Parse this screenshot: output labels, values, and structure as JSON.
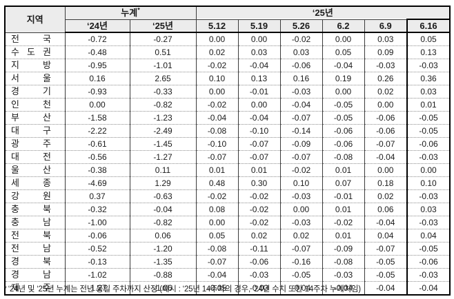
{
  "header": {
    "region_label": "지역",
    "cumulative_label": "누계",
    "cumulative_note_marker": "*",
    "year_group_label": "‘25년",
    "cumulative_cols": [
      "‘24년",
      "‘25년"
    ],
    "date_cols": [
      "5.12",
      "5.19",
      "5.26",
      "6.2",
      "6.9",
      "6.16"
    ],
    "highlighted_col": "6.16"
  },
  "rows": [
    {
      "region": "전국",
      "values": [
        "-0.72",
        "-0.27",
        "0.00",
        "0.00",
        "-0.02",
        "0.00",
        "0.03",
        "0.05"
      ]
    },
    {
      "region": "수도권",
      "values": [
        "-0.48",
        "0.51",
        "0.02",
        "0.03",
        "0.03",
        "0.05",
        "0.09",
        "0.13"
      ]
    },
    {
      "region": "지방",
      "values": [
        "-0.95",
        "-1.01",
        "-0.02",
        "-0.04",
        "-0.06",
        "-0.04",
        "-0.03",
        "-0.03"
      ]
    },
    {
      "region": "서울",
      "values": [
        "0.16",
        "2.65",
        "0.10",
        "0.13",
        "0.16",
        "0.19",
        "0.26",
        "0.36"
      ]
    },
    {
      "region": "경기",
      "values": [
        "-0.93",
        "-0.33",
        "0.00",
        "-0.01",
        "-0.03",
        "0.00",
        "0.02",
        "0.03"
      ]
    },
    {
      "region": "인천",
      "values": [
        "0.00",
        "-0.82",
        "-0.02",
        "0.00",
        "-0.04",
        "-0.05",
        "0.00",
        "0.01"
      ]
    },
    {
      "region": "부산",
      "values": [
        "-1.58",
        "-1.23",
        "-0.04",
        "-0.04",
        "-0.07",
        "-0.05",
        "-0.06",
        "-0.05"
      ]
    },
    {
      "region": "대구",
      "values": [
        "-2.22",
        "-2.49",
        "-0.08",
        "-0.10",
        "-0.14",
        "-0.06",
        "-0.06",
        "-0.05"
      ]
    },
    {
      "region": "광주",
      "values": [
        "-0.61",
        "-1.45",
        "-0.10",
        "-0.07",
        "-0.09",
        "-0.06",
        "-0.07",
        "-0.06"
      ]
    },
    {
      "region": "대전",
      "values": [
        "-0.56",
        "-1.27",
        "-0.07",
        "-0.07",
        "-0.07",
        "-0.08",
        "-0.04",
        "-0.03"
      ]
    },
    {
      "region": "울산",
      "values": [
        "-0.38",
        "0.11",
        "0.01",
        "0.01",
        "-0.02",
        "0.01",
        "0.00",
        "0.00"
      ]
    },
    {
      "region": "세종",
      "values": [
        "-4.69",
        "1.29",
        "0.48",
        "0.30",
        "0.10",
        "0.07",
        "0.18",
        "0.10"
      ]
    },
    {
      "region": "강원",
      "values": [
        "0.37",
        "-0.63",
        "-0.02",
        "-0.02",
        "-0.03",
        "-0.01",
        "0.02",
        "-0.03"
      ]
    },
    {
      "region": "충북",
      "values": [
        "-0.32",
        "-0.04",
        "0.08",
        "-0.02",
        "0.00",
        "0.01",
        "0.06",
        "0.03"
      ]
    },
    {
      "region": "충남",
      "values": [
        "-1.00",
        "-0.82",
        "0.00",
        "-0.02",
        "-0.03",
        "-0.02",
        "-0.04",
        "-0.03"
      ]
    },
    {
      "region": "전북",
      "values": [
        "-0.06",
        "0.06",
        "0.05",
        "0.02",
        "0.02",
        "0.01",
        "0.04",
        "0.04"
      ]
    },
    {
      "region": "전남",
      "values": [
        "-0.52",
        "-1.20",
        "-0.08",
        "-0.11",
        "-0.07",
        "-0.09",
        "-0.07",
        "-0.05"
      ]
    },
    {
      "region": "경북",
      "values": [
        "-0.13",
        "-1.35",
        "-0.07",
        "-0.06",
        "-0.16",
        "-0.08",
        "-0.05",
        "-0.06"
      ]
    },
    {
      "region": "경남",
      "values": [
        "-1.02",
        "-0.88",
        "-0.04",
        "-0.03",
        "-0.05",
        "-0.03",
        "-0.05",
        "-0.03"
      ]
    },
    {
      "region": "제주",
      "values": [
        "-1.27",
        "-1.06",
        "-0.05",
        "-0.03",
        "-0.04",
        "-0.04",
        "-0.04",
        "-0.04"
      ]
    }
  ],
  "footnote": {
    "marker": "*",
    "text": "‘24년 및 ‘25년 누계는 전년 동일 주차까지 산정 (예시 : ‘25년 14주차의 경우, ‘24년 수치 또한 14주차 누계치임)"
  },
  "colors": {
    "header_bg": "#ececec",
    "border": "#000000",
    "dotted": "#8c8c8c",
    "text": "#1a1a1a"
  }
}
